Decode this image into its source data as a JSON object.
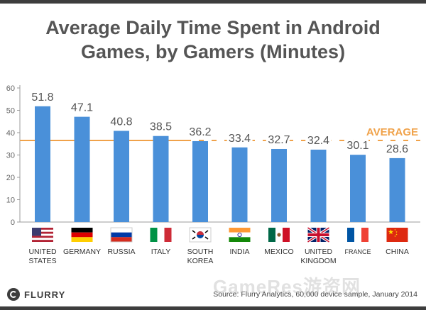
{
  "title_lines": [
    "Average Daily Time Spent in Android",
    "Games, by Gamers (Minutes)"
  ],
  "source": "Source: Flurry Analytics, 60,000 device sample, January 2014",
  "logo_text": "FLURRY",
  "watermark": "GameRes游资网",
  "colors": {
    "bar": "#4a90d9",
    "average_line": "#f0a24a",
    "axis": "#9b9b9b",
    "text": "#555555"
  },
  "chart_data": {
    "type": "bar",
    "title": "Average Daily Time Spent in Android Games, by Gamers (Minutes)",
    "categories": [
      {
        "label": [
          "UNITED",
          "STATES"
        ],
        "flag": "us-flag-icon"
      },
      {
        "label": [
          "GERMANY"
        ],
        "flag": "germany-flag-icon"
      },
      {
        "label": [
          "RUSSIA"
        ],
        "flag": "russia-flag-icon"
      },
      {
        "label": [
          "ITALY"
        ],
        "flag": "italy-flag-icon"
      },
      {
        "label": [
          "SOUTH",
          "KOREA"
        ],
        "flag": "south-korea-flag-icon"
      },
      {
        "label": [
          "INDIA"
        ],
        "flag": "india-flag-icon"
      },
      {
        "label": [
          "MEXICO"
        ],
        "flag": "mexico-flag-icon"
      },
      {
        "label": [
          "UNITED",
          "KINGDOM"
        ],
        "flag": "uk-flag-icon"
      },
      {
        "label": [
          "FRANCE"
        ],
        "flag": "france-flag-icon"
      },
      {
        "label": [
          "CHINA"
        ],
        "flag": "china-flag-icon"
      }
    ],
    "values": [
      51.8,
      47.1,
      40.8,
      38.5,
      36.2,
      33.4,
      32.7,
      32.4,
      30.1,
      28.6
    ],
    "value_labels": [
      "51.8",
      "47.1",
      "40.8",
      "38.5",
      "36.2",
      "33.4",
      "32.7",
      "32.4",
      "30.1",
      "28.6"
    ],
    "average": {
      "label": "AVERAGE",
      "value": 36.5
    },
    "ylim": [
      0,
      60
    ],
    "yticks": [
      0,
      10,
      20,
      30,
      40,
      50,
      60
    ],
    "xlabel": "",
    "ylabel": "",
    "grid": false
  }
}
